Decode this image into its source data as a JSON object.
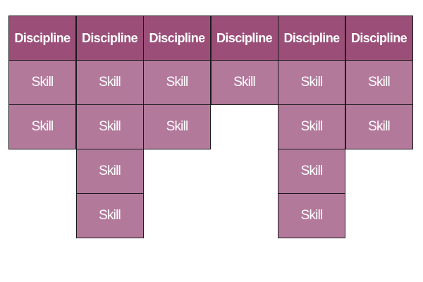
{
  "colors": {
    "header_fill": "#9b4f78",
    "skill_fill": "#b3799b",
    "border": "#1a1a1a",
    "text": "#ffffff"
  },
  "columns": [
    {
      "header": "Discipline",
      "skills": [
        "Skill",
        "Skill"
      ]
    },
    {
      "header": "Discipline",
      "skills": [
        "Skill",
        "Skill",
        "Skill",
        "Skill"
      ]
    },
    {
      "header": "Discipline",
      "skills": [
        "Skill",
        "Skill"
      ]
    },
    {
      "header": "Discipline",
      "skills": [
        "Skill"
      ]
    },
    {
      "header": "Discipline",
      "skills": [
        "Skill",
        "Skill",
        "Skill",
        "Skill"
      ]
    },
    {
      "header": "Discipline",
      "skills": [
        "Skill",
        "Skill"
      ]
    }
  ]
}
